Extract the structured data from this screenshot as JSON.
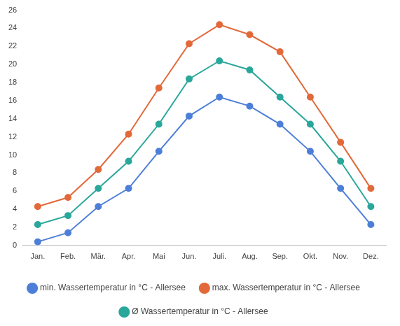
{
  "chart_data": {
    "type": "line",
    "categories": [
      "Jan.",
      "Feb.",
      "Mär.",
      "Apr.",
      "Mai",
      "Jun.",
      "Juli.",
      "Aug.",
      "Sep.",
      "Okt.",
      "Nov.",
      "Dez."
    ],
    "series": [
      {
        "name": "min. Wassertemperatur in °C - Allersee",
        "color": "#4d7fd8",
        "values": [
          0.4,
          1.4,
          4.3,
          6.3,
          10.4,
          14.3,
          16.4,
          15.4,
          13.4,
          10.4,
          6.3,
          2.3
        ]
      },
      {
        "name": "max. Wassertemperatur in °C - Allersee",
        "color": "#e2693a",
        "values": [
          4.3,
          5.3,
          8.4,
          12.3,
          17.4,
          22.3,
          24.4,
          23.3,
          21.4,
          16.4,
          11.4,
          6.3
        ]
      },
      {
        "name": "Ø Wassertemperatur in °C - Allersee",
        "color": "#2aa79b",
        "values": [
          2.3,
          3.3,
          6.3,
          9.3,
          13.4,
          18.4,
          20.4,
          19.4,
          16.4,
          13.4,
          9.3,
          4.3
        ]
      }
    ],
    "ylim": [
      0,
      26
    ],
    "yticks": [
      0,
      2,
      4,
      6,
      8,
      10,
      12,
      14,
      16,
      18,
      20,
      22,
      24,
      26
    ],
    "grid": false,
    "legend": "bottom",
    "marker": "circle"
  }
}
